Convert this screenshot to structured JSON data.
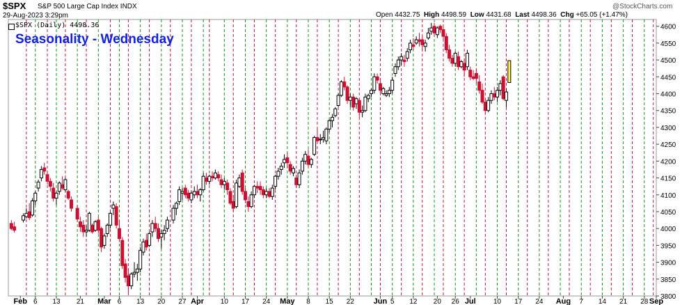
{
  "header": {
    "symbol": "$SPX",
    "description": "S&P 500 Large Cap Index INDX",
    "datetime": "29-Aug-2023 3:29pm",
    "watermark": "@StockCharts.com",
    "open_label": "Open",
    "open": "4432.75",
    "high_label": "High",
    "high": "4498.59",
    "low_label": "Low",
    "low": "4431.68",
    "last_label": "Last",
    "last": "4498.36",
    "chg_label": "Chg",
    "chg": "+65.05 (+1.47%)"
  },
  "legend": "$SPX (Daily) 4498.36",
  "title": "Seasonality - Wednesday",
  "colors": {
    "up": "#000000",
    "down": "#cc1133",
    "wednesday_line": "#cc1133",
    "monday_line": "#119911",
    "last_bar": "#ffee55",
    "title": "#1122dd"
  },
  "chart_data": {
    "type": "candlestick",
    "ylim": [
      3800,
      4620
    ],
    "yticks": [
      3800,
      3850,
      3900,
      3950,
      4000,
      4050,
      4100,
      4150,
      4200,
      4250,
      4300,
      4350,
      4400,
      4450,
      4500,
      4550,
      4600
    ],
    "x_tick_labels": [
      "Feb",
      "6",
      "13",
      "21",
      "Mar",
      "6",
      "13",
      "20",
      "27",
      "Apr",
      "10",
      "17",
      "24",
      "May",
      "8",
      "15",
      "22",
      "Jun",
      "5",
      "12",
      "20",
      "26",
      "Jul",
      "10",
      "17",
      "24",
      "Aug",
      "7",
      "14",
      "21",
      "28",
      "Sep"
    ],
    "x_tick_is_month": [
      true,
      false,
      false,
      false,
      true,
      false,
      false,
      false,
      false,
      true,
      false,
      false,
      false,
      true,
      false,
      false,
      false,
      true,
      false,
      false,
      false,
      false,
      true,
      false,
      false,
      false,
      true,
      false,
      false,
      false,
      false,
      true
    ],
    "x_tick_days": [
      0,
      5,
      12,
      20,
      28,
      33,
      40,
      47,
      54,
      59,
      68,
      75,
      82,
      89,
      96,
      103,
      110,
      120,
      124,
      131,
      139,
      145,
      150,
      159,
      166,
      173,
      181,
      187,
      194,
      201,
      208,
      212
    ],
    "wednesday_lines": [
      2,
      9,
      15,
      22,
      30,
      36,
      43,
      50,
      57,
      63,
      71,
      78,
      85,
      92,
      99,
      106,
      113,
      120,
      127,
      134,
      141,
      148,
      155,
      162,
      169,
      176,
      183,
      190,
      197,
      204,
      211
    ],
    "monday_lines": [
      5,
      12,
      19,
      26,
      33,
      40,
      47,
      54,
      61,
      68,
      75,
      82,
      89,
      96,
      103,
      110,
      117,
      124,
      131,
      138,
      145,
      152,
      159,
      166,
      173,
      180,
      187,
      194,
      201,
      208
    ],
    "ohlc": [
      [
        -3,
        4015,
        4025,
        3995,
        4000
      ],
      [
        -2,
        4005,
        4020,
        3988,
        3995
      ],
      [
        1,
        4025,
        4045,
        4018,
        4038
      ],
      [
        2,
        4035,
        4060,
        4030,
        4045
      ],
      [
        3,
        4050,
        4075,
        4025,
        4032
      ],
      [
        4,
        4040,
        4090,
        4035,
        4082
      ],
      [
        5,
        4082,
        4110,
        4070,
        4105
      ],
      [
        6,
        4120,
        4145,
        4110,
        4138
      ],
      [
        7,
        4150,
        4185,
        4140,
        4175
      ],
      [
        8,
        4180,
        4195,
        4160,
        4170
      ],
      [
        9,
        4160,
        4170,
        4130,
        4140
      ],
      [
        10,
        4140,
        4150,
        4110,
        4125
      ],
      [
        11,
        4120,
        4135,
        4080,
        4090
      ],
      [
        12,
        4090,
        4110,
        4070,
        4105
      ],
      [
        13,
        4110,
        4140,
        4100,
        4135
      ],
      [
        14,
        4130,
        4155,
        4115,
        4120
      ],
      [
        15,
        4115,
        4150,
        4110,
        4145
      ],
      [
        16,
        4110,
        4115,
        4085,
        4090
      ],
      [
        17,
        4085,
        4095,
        4050,
        4060
      ],
      [
        19,
        4060,
        4070,
        4020,
        4028
      ],
      [
        20,
        4020,
        4035,
        3990,
        4005
      ],
      [
        21,
        4010,
        4025,
        3975,
        3990
      ],
      [
        22,
        3990,
        4010,
        3975,
        3995
      ],
      [
        23,
        3995,
        4050,
        3990,
        4045
      ],
      [
        24,
        4010,
        4015,
        3985,
        3990
      ],
      [
        25,
        3995,
        4025,
        3990,
        4020
      ],
      [
        26,
        4025,
        4035,
        3985,
        3995
      ],
      [
        27,
        4000,
        4005,
        3930,
        3945
      ],
      [
        28,
        3950,
        3985,
        3940,
        3978
      ],
      [
        29,
        3985,
        4015,
        3975,
        4010
      ],
      [
        30,
        4010,
        4050,
        4000,
        4045
      ],
      [
        31,
        4060,
        4080,
        4040,
        4070
      ],
      [
        32,
        4065,
        4075,
        4000,
        4010
      ],
      [
        33,
        4000,
        4025,
        3960,
        3970
      ],
      [
        34,
        3965,
        3975,
        3880,
        3890
      ],
      [
        35,
        3895,
        3910,
        3840,
        3855
      ],
      [
        36,
        3860,
        3880,
        3810,
        3830
      ],
      [
        37,
        3830,
        3870,
        3820,
        3865
      ],
      [
        38,
        3865,
        3900,
        3855,
        3870
      ],
      [
        39,
        3870,
        3895,
        3845,
        3880
      ],
      [
        40,
        3880,
        3945,
        3870,
        3935
      ],
      [
        41,
        3930,
        3970,
        3920,
        3960
      ],
      [
        42,
        3965,
        3985,
        3935,
        3945
      ],
      [
        43,
        3950,
        3990,
        3945,
        3985
      ],
      [
        44,
        3990,
        4025,
        3975,
        4015
      ],
      [
        45,
        4015,
        4035,
        3990,
        4000
      ],
      [
        46,
        4000,
        4015,
        3960,
        3970
      ],
      [
        47,
        3975,
        3995,
        3940,
        3985
      ],
      [
        48,
        3985,
        4010,
        3965,
        3995
      ],
      [
        49,
        4000,
        4035,
        3990,
        4025
      ],
      [
        51,
        4025,
        4070,
        4015,
        4060
      ],
      [
        52,
        4060,
        4080,
        4040,
        4075
      ],
      [
        53,
        4080,
        4125,
        4070,
        4115
      ],
      [
        54,
        4105,
        4120,
        4085,
        4110
      ],
      [
        55,
        4120,
        4130,
        4090,
        4100
      ],
      [
        56,
        4105,
        4115,
        4080,
        4090
      ],
      [
        57,
        4085,
        4110,
        4075,
        4105
      ],
      [
        58,
        4100,
        4125,
        4090,
        4110
      ],
      [
        59,
        4110,
        4130,
        4090,
        4100
      ],
      [
        60,
        4100,
        4120,
        4080,
        4115
      ],
      [
        61,
        4115,
        4165,
        4110,
        4155
      ],
      [
        62,
        4150,
        4165,
        4130,
        4140
      ],
      [
        63,
        4140,
        4160,
        4130,
        4155
      ],
      [
        64,
        4155,
        4170,
        4140,
        4150
      ],
      [
        65,
        4150,
        4175,
        4145,
        4165
      ],
      [
        66,
        4160,
        4170,
        4140,
        4150
      ],
      [
        67,
        4145,
        4160,
        4120,
        4130
      ],
      [
        68,
        4130,
        4150,
        4115,
        4140
      ],
      [
        69,
        4135,
        4145,
        4100,
        4115
      ],
      [
        70,
        4110,
        4120,
        4070,
        4075
      ],
      [
        71,
        4080,
        4100,
        4050,
        4060
      ],
      [
        72,
        4065,
        4145,
        4060,
        4135
      ],
      [
        73,
        4125,
        4160,
        4120,
        4150
      ],
      [
        74,
        4165,
        4175,
        4100,
        4110
      ],
      [
        75,
        4110,
        4120,
        4075,
        4085
      ],
      [
        76,
        4080,
        4095,
        4050,
        4065
      ],
      [
        77,
        4065,
        4110,
        4060,
        4100
      ],
      [
        78,
        4100,
        4130,
        4090,
        4125
      ],
      [
        79,
        4125,
        4140,
        4105,
        4120
      ],
      [
        80,
        4125,
        4140,
        4100,
        4115
      ],
      [
        81,
        4115,
        4125,
        4090,
        4100
      ],
      [
        82,
        4100,
        4120,
        4090,
        4110
      ],
      [
        83,
        4110,
        4120,
        4090,
        4095
      ],
      [
        84,
        4095,
        4130,
        4085,
        4120
      ],
      [
        85,
        4125,
        4160,
        4115,
        4155
      ],
      [
        86,
        4155,
        4180,
        4145,
        4170
      ],
      [
        87,
        4175,
        4195,
        4160,
        4185
      ],
      [
        88,
        4195,
        4220,
        4180,
        4205
      ],
      [
        89,
        4210,
        4225,
        4180,
        4195
      ],
      [
        90,
        4190,
        4200,
        4160,
        4170
      ],
      [
        91,
        4165,
        4185,
        4155,
        4178
      ],
      [
        92,
        4150,
        4160,
        4120,
        4130
      ],
      [
        93,
        4130,
        4175,
        4120,
        4165
      ],
      [
        94,
        4170,
        4210,
        4160,
        4200
      ],
      [
        95,
        4200,
        4230,
        4190,
        4220
      ],
      [
        96,
        4215,
        4235,
        4180,
        4190
      ],
      [
        97,
        4190,
        4210,
        4180,
        4205
      ],
      [
        98,
        4220,
        4275,
        4215,
        4270
      ],
      [
        99,
        4270,
        4295,
        4255,
        4260
      ],
      [
        100,
        4265,
        4280,
        4250,
        4265
      ],
      [
        101,
        4265,
        4290,
        4255,
        4270
      ],
      [
        102,
        4260,
        4300,
        4250,
        4295
      ],
      [
        103,
        4295,
        4325,
        4285,
        4320
      ],
      [
        104,
        4320,
        4340,
        4300,
        4330
      ],
      [
        105,
        4335,
        4360,
        4330,
        4355
      ],
      [
        106,
        4365,
        4400,
        4360,
        4395
      ],
      [
        107,
        4395,
        4440,
        4390,
        4435
      ],
      [
        108,
        4435,
        4450,
        4410,
        4420
      ],
      [
        109,
        4420,
        4425,
        4370,
        4380
      ],
      [
        110,
        4380,
        4400,
        4360,
        4390
      ],
      [
        111,
        4390,
        4400,
        4350,
        4360
      ],
      [
        112,
        4370,
        4390,
        4355,
        4385
      ],
      [
        113,
        4380,
        4385,
        4330,
        4345
      ],
      [
        114,
        4345,
        4365,
        4330,
        4350
      ],
      [
        115,
        4350,
        4400,
        4345,
        4390
      ],
      [
        116,
        4385,
        4400,
        4375,
        4395
      ],
      [
        117,
        4400,
        4415,
        4390,
        4410
      ],
      [
        118,
        4410,
        4460,
        4400,
        4450
      ],
      [
        119,
        4450,
        4460,
        4430,
        4440
      ],
      [
        120,
        4430,
        4445,
        4400,
        4410
      ],
      [
        121,
        4400,
        4420,
        4395,
        4415
      ],
      [
        122,
        4395,
        4410,
        4390,
        4400
      ],
      [
        123,
        4400,
        4420,
        4390,
        4410
      ],
      [
        124,
        4410,
        4450,
        4400,
        4440
      ],
      [
        125,
        4460,
        4490,
        4450,
        4480
      ],
      [
        126,
        4480,
        4510,
        4470,
        4500
      ],
      [
        127,
        4500,
        4520,
        4485,
        4510
      ],
      [
        128,
        4500,
        4515,
        4480,
        4495
      ],
      [
        129,
        4505,
        4535,
        4495,
        4525
      ],
      [
        130,
        4530,
        4560,
        4520,
        4550
      ],
      [
        131,
        4545,
        4565,
        4530,
        4540
      ],
      [
        132,
        4550,
        4570,
        4545,
        4560
      ],
      [
        133,
        4560,
        4580,
        4540,
        4555
      ],
      [
        134,
        4560,
        4570,
        4530,
        4545
      ],
      [
        135,
        4540,
        4560,
        4525,
        4550
      ],
      [
        136,
        4565,
        4595,
        4560,
        4580
      ],
      [
        137,
        4585,
        4610,
        4575,
        4595
      ],
      [
        138,
        4600,
        4610,
        4570,
        4580
      ],
      [
        139,
        4575,
        4600,
        4565,
        4595
      ],
      [
        140,
        4600,
        4605,
        4580,
        4590
      ],
      [
        141,
        4590,
        4600,
        4560,
        4570
      ],
      [
        142,
        4570,
        4580,
        4520,
        4530
      ],
      [
        143,
        4530,
        4545,
        4495,
        4505
      ],
      [
        144,
        4505,
        4515,
        4480,
        4490
      ],
      [
        145,
        4490,
        4525,
        4480,
        4520
      ],
      [
        146,
        4510,
        4525,
        4470,
        4480
      ],
      [
        147,
        4480,
        4500,
        4475,
        4495
      ],
      [
        148,
        4490,
        4505,
        4450,
        4470
      ],
      [
        149,
        4480,
        4530,
        4470,
        4520
      ],
      [
        150,
        4470,
        4480,
        4440,
        4450
      ],
      [
        151,
        4450,
        4470,
        4440,
        4445
      ],
      [
        152,
        4460,
        4475,
        4430,
        4445
      ],
      [
        153,
        4435,
        4455,
        4400,
        4410
      ],
      [
        154,
        4410,
        4430,
        4370,
        4375
      ],
      [
        155,
        4375,
        4385,
        4340,
        4350
      ],
      [
        156,
        4350,
        4390,
        4345,
        4380
      ],
      [
        157,
        4380,
        4410,
        4370,
        4400
      ],
      [
        158,
        4400,
        4420,
        4380,
        4390
      ],
      [
        159,
        4390,
        4420,
        4375,
        4410
      ],
      [
        160,
        4410,
        4440,
        4395,
        4430
      ],
      [
        161,
        4450,
        4455,
        4380,
        4385
      ],
      [
        162,
        4380,
        4415,
        4360,
        4405
      ],
      [
        163,
        4433,
        4499,
        4432,
        4498
      ]
    ]
  }
}
